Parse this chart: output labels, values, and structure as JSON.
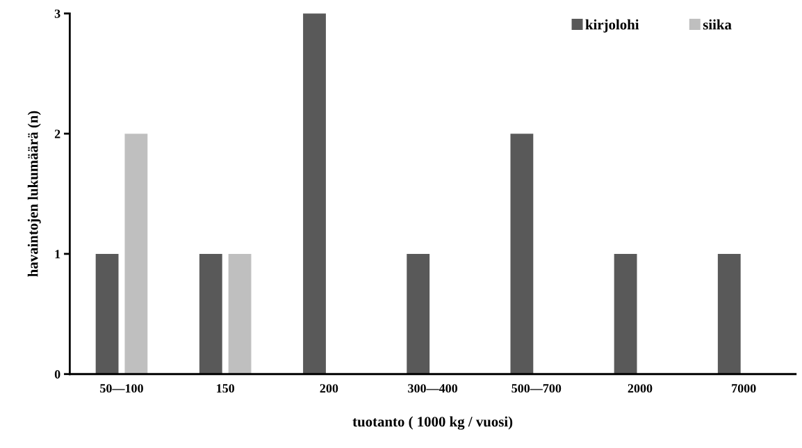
{
  "chart_data": {
    "type": "bar",
    "xlabel": "tuotanto ( 1000 kg / vuosi)",
    "ylabel": "havaintojen lukumäärä (n)",
    "categories": [
      "50—100",
      "150",
      "200",
      "300—400",
      "500—700",
      "2000",
      "7000"
    ],
    "series": [
      {
        "name": "kirjolohi",
        "color": "#595959",
        "values": [
          1,
          1,
          3,
          1,
          2,
          1,
          1
        ]
      },
      {
        "name": "siika",
        "color": "#bfbfbf",
        "values": [
          2,
          1,
          null,
          null,
          null,
          null,
          null
        ]
      }
    ],
    "ylim": [
      0,
      3
    ],
    "yticks": [
      0,
      1,
      2,
      3
    ],
    "grid": false,
    "legend": "top right"
  }
}
